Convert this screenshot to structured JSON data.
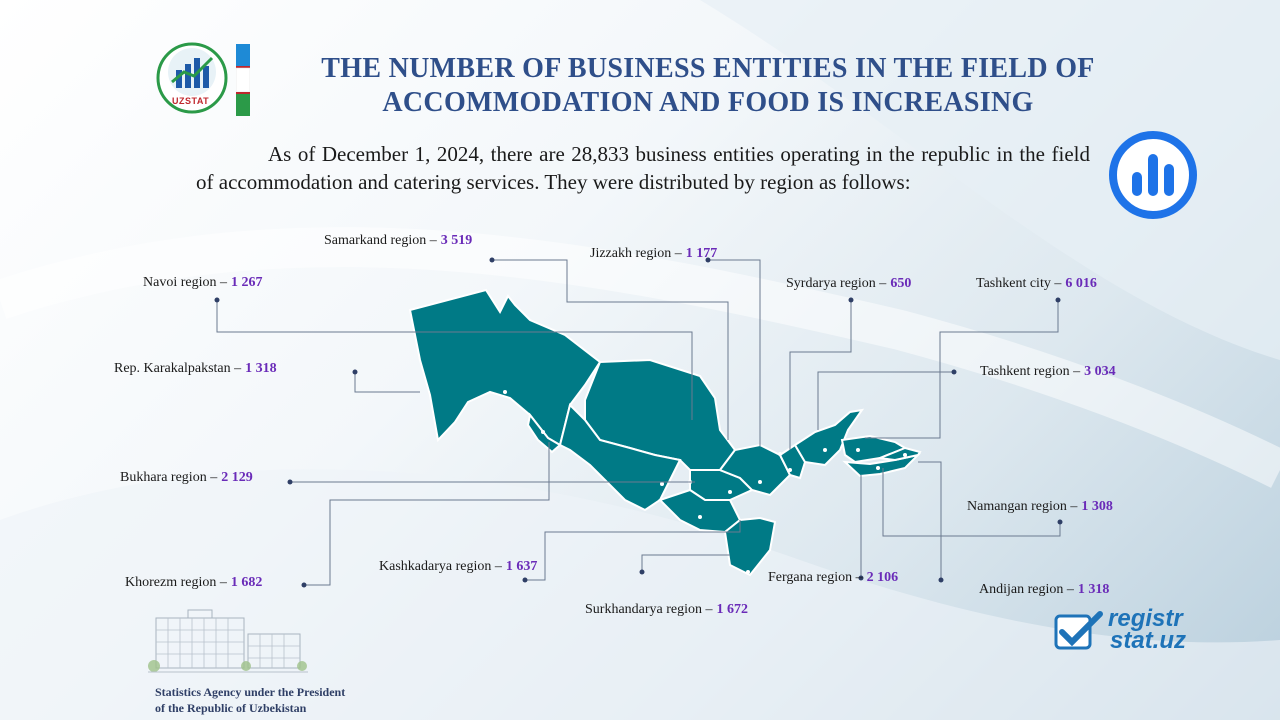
{
  "header": {
    "title_line1": "THE NUMBER OF BUSINESS ENTITIES IN THE FIELD OF",
    "title_line2": "ACCOMMODATION AND FOOD IS INCREASING",
    "logo_text": "UZSTAT"
  },
  "intro": "As of December 1, 2024, there are 28,833 business entities operating in the republic in the field of accommodation and catering services. They were distributed by region as follows:",
  "regions": [
    {
      "name": "Samarkand region –",
      "value": "3 519"
    },
    {
      "name": "Jizzakh region –",
      "value": "1 177"
    },
    {
      "name": "Navoi region –",
      "value": "1 267"
    },
    {
      "name": "Syrdarya region –",
      "value": "650"
    },
    {
      "name": "Tashkent city –",
      "value": "6 016"
    },
    {
      "name": "Rep. Karakalpakstan –",
      "value": "1 318"
    },
    {
      "name": "Tashkent region –",
      "value": "3 034"
    },
    {
      "name": "Bukhara region –",
      "value": "2 129"
    },
    {
      "name": "Namangan region –",
      "value": "1 308"
    },
    {
      "name": "Kashkadarya region –",
      "value": "1 637"
    },
    {
      "name": "Khorezm region –",
      "value": "1 682"
    },
    {
      "name": "Fergana region –",
      "value": "2 106"
    },
    {
      "name": "Andijan region –",
      "value": "1 318"
    },
    {
      "name": "Surkhandarya region –",
      "value": "1 672"
    }
  ],
  "footer": {
    "agency_line1": "Statistics Agency under the President",
    "agency_line2": "of the Republic of Uzbekistan",
    "site_line1": "registr",
    "site_line2": "stat.uz"
  },
  "colors": {
    "map_fill": "#007a86",
    "title": "#2f4f8a",
    "value": "#6a2bb8",
    "icon_blue": "#1e73e8"
  },
  "icons": [
    "uzstat-logo",
    "uzbekistan-flag",
    "bar-chart-icon",
    "checkmark-icon",
    "building-illustration"
  ]
}
